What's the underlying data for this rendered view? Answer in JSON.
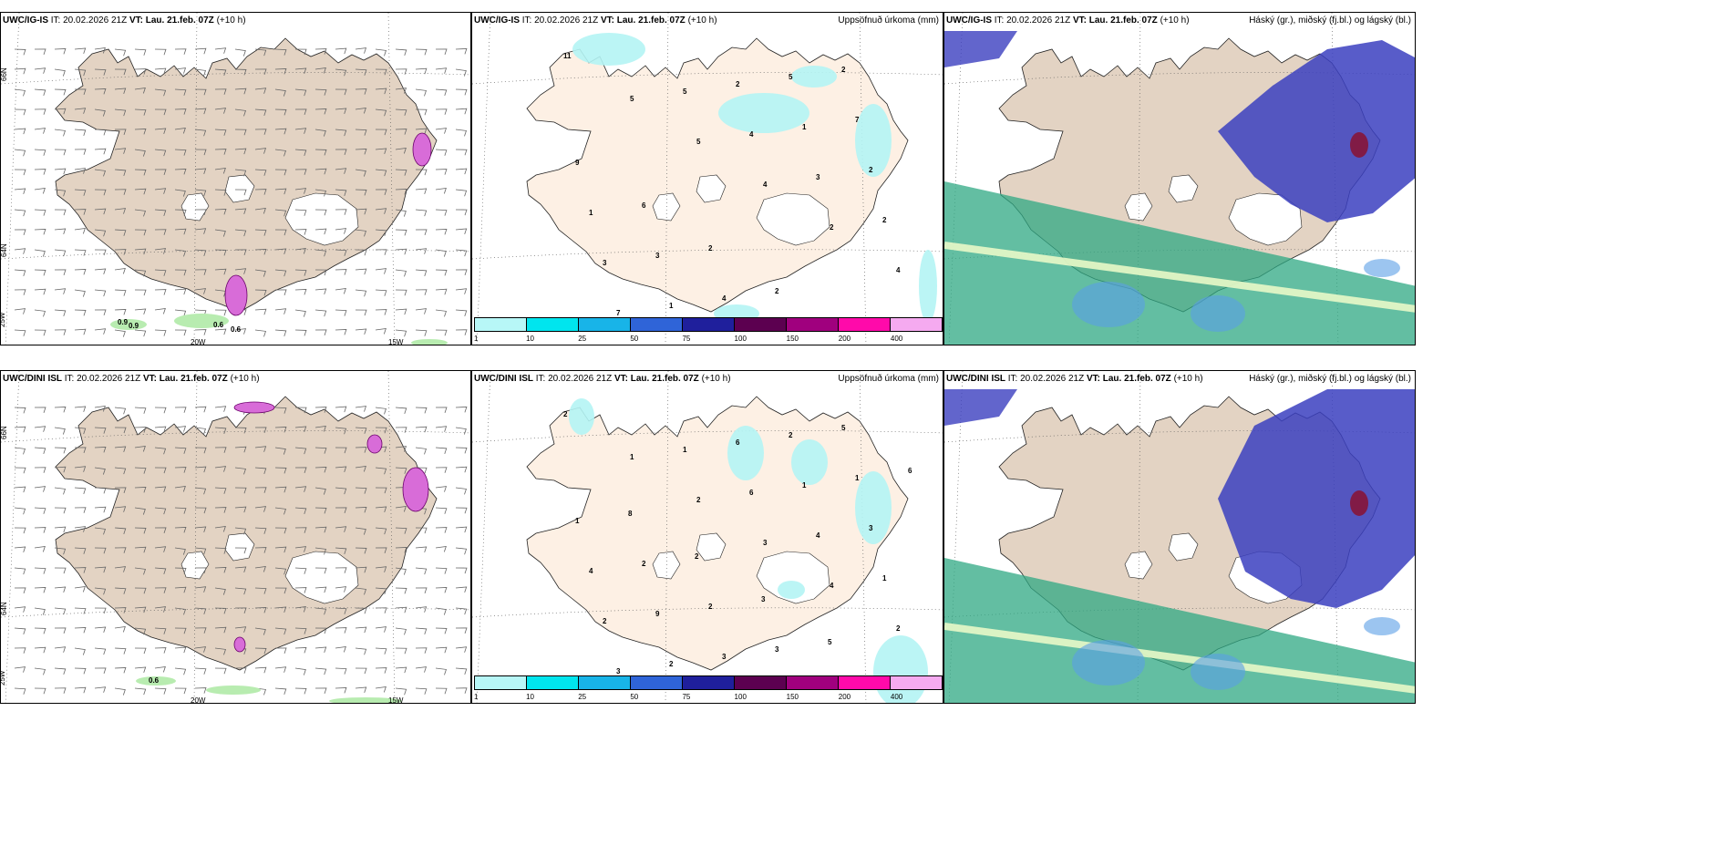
{
  "panels": [
    {
      "model": "UWC/IG-IS",
      "it_label": "IT:",
      "it": "20.02.2026 21Z",
      "vt_label": "VT:",
      "vt": "Lau. 21.feb. 07Z",
      "lead": "(+10 h)",
      "right_title": ""
    },
    {
      "model": "UWC/IG-IS",
      "it_label": "IT:",
      "it": "20.02.2026 21Z",
      "vt_label": "VT:",
      "vt": "Lau. 21.feb. 07Z",
      "lead": "(+10 h)",
      "right_title": "Uppsöfnuð úrkoma (mm)"
    },
    {
      "model": "UWC/IG-IS",
      "it_label": "IT:",
      "it": "20.02.2026 21Z",
      "vt_label": "VT:",
      "vt": "Lau. 21.feb. 07Z",
      "lead": "(+10 h)",
      "right_title": "Háský (gr.), miðský (fj.bl.) og lágský (bl.)"
    },
    {
      "model": "UWC/DINI ISL",
      "it_label": "IT:",
      "it": "20.02.2026 21Z",
      "vt_label": "VT:",
      "vt": "Lau. 21.feb. 07Z",
      "lead": "(+10 h)",
      "right_title": ""
    },
    {
      "model": "UWC/DINI ISL",
      "it_label": "IT:",
      "it": "20.02.2026 21Z",
      "vt_label": "VT:",
      "vt": "Lau. 21.feb. 07Z",
      "lead": "(+10 h)",
      "right_title": "Uppsöfnuð úrkoma (mm)"
    },
    {
      "model": "UWC/DINI ISL",
      "it_label": "IT:",
      "it": "20.02.2026 21Z",
      "vt_label": "VT:",
      "vt": "Lau. 21.feb. 07Z",
      "lead": "(+10 h)",
      "right_title": "Háský (gr.), miðský (fj.bl.) og lágský (bl.)"
    }
  ],
  "axes": {
    "lat66": "66N",
    "lat64": "64N",
    "lon20": "20W",
    "lon15": "15W",
    "lon25": "25W"
  },
  "colorbar": {
    "labels": [
      "1",
      "10",
      "25",
      "50",
      "75",
      "100",
      "150",
      "200",
      "400"
    ],
    "colors": [
      "#b7f7f7",
      "#00e5ee",
      "#18b4e8",
      "#2f64d8",
      "#1f1f9c",
      "#5c0050",
      "#a0007e",
      "#ff0aaa",
      "#f5aaf0"
    ]
  },
  "colors": {
    "land": "#e3d3c3",
    "land_light": "#fdf0e4",
    "sea": "#ffffff",
    "glacier": "#ffffff",
    "precip": "#b4f4f4",
    "high_cloud": "#2fa883",
    "mid_cloud": "#3b3fbf",
    "low_cloud": "#5a9fe6"
  },
  "labels": {
    "p1": [
      "0.9",
      "0.9",
      "0.6",
      "0.6"
    ],
    "p2": [
      "11",
      "5",
      "5",
      "4",
      "2",
      "4",
      "7",
      "5",
      "4",
      "3",
      "2",
      "3",
      "1",
      "2",
      "1",
      "2",
      "1",
      "3",
      "4",
      "5",
      "7",
      "9",
      "6",
      "2",
      "2",
      "2"
    ],
    "p4": [
      "0.6"
    ],
    "p5": [
      "2",
      "1",
      "2",
      "3",
      "4",
      "2",
      "3",
      "1",
      "6",
      "4",
      "1",
      "2",
      "2",
      "6",
      "1",
      "3",
      "4",
      "9",
      "3",
      "2",
      "1",
      "1",
      "2",
      "2",
      "3",
      "5",
      "6",
      "8",
      "2",
      "3",
      "5"
    ]
  }
}
